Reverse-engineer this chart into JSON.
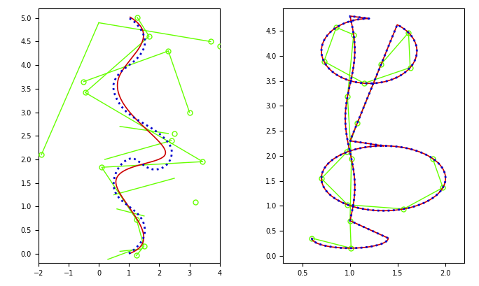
{
  "fig_width": 6.84,
  "fig_height": 4.09,
  "dpi": 100,
  "left_xlim": [
    -2,
    4
  ],
  "left_ylim": [
    -0.2,
    5.2
  ],
  "right_xlim": [
    0.3,
    2.2
  ],
  "right_ylim": [
    -0.15,
    4.95
  ],
  "left_xticks": [
    -2,
    -1,
    0,
    1,
    2,
    3,
    4
  ],
  "left_yticks": [
    0,
    0.5,
    1,
    1.5,
    2,
    2.5,
    3,
    3.5,
    4,
    4.5,
    5
  ],
  "right_xticks": [
    0.5,
    1.0,
    1.5,
    2.0
  ],
  "right_yticks": [
    0,
    0.5,
    1,
    1.5,
    2,
    2.5,
    3,
    3.5,
    4,
    4.5
  ],
  "green_color": "#66FF00",
  "red_color": "#CC0000",
  "blue_color": "#0000CC",
  "ctrl_lw": 1.0,
  "curve_lw": 1.2,
  "dot_size": 8,
  "circle_size": 5
}
